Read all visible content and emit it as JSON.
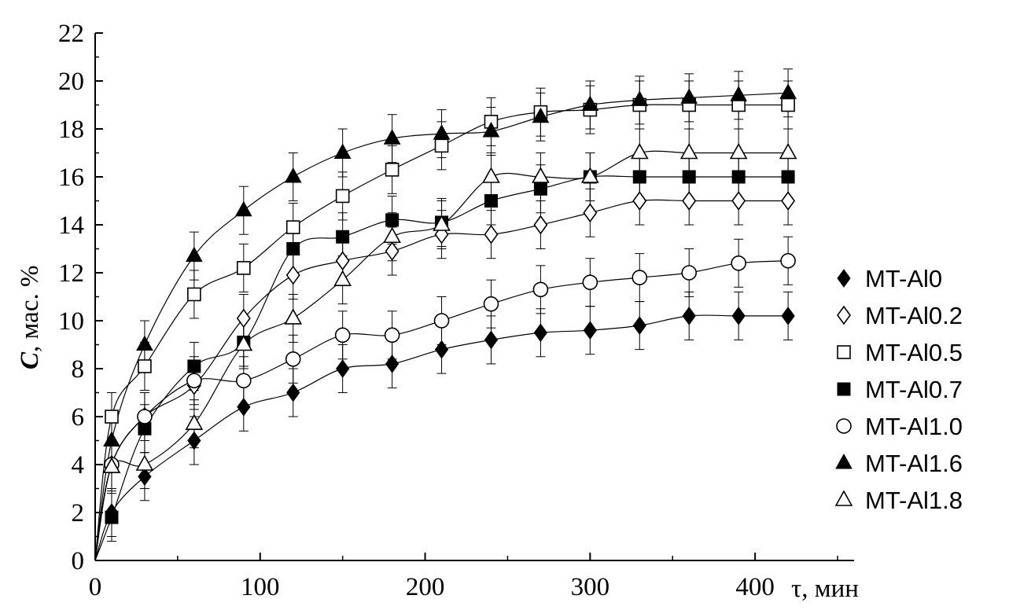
{
  "chart_data": {
    "type": "line",
    "title": "",
    "xlabel": "τ, мин",
    "ylabel_italic": "C",
    "ylabel": ", мас. %",
    "xlim": [
      0,
      460
    ],
    "ylim": [
      0,
      22
    ],
    "x_ticks": [
      "0",
      "100",
      "200",
      "300",
      "400"
    ],
    "y_ticks": [
      "0",
      "2",
      "4",
      "6",
      "8",
      "10",
      "12",
      "14",
      "16",
      "18",
      "20",
      "22"
    ],
    "legend_position": "right",
    "x": [
      0,
      10,
      30,
      60,
      90,
      120,
      150,
      180,
      210,
      240,
      270,
      300,
      330,
      360,
      390,
      420
    ],
    "series": [
      {
        "name": "MT-Al0",
        "marker": "diamond",
        "filled": true,
        "values": [
          0,
          2.0,
          3.5,
          5.0,
          6.4,
          7.0,
          8.0,
          8.2,
          8.8,
          9.2,
          9.5,
          9.6,
          9.8,
          10.2,
          10.2,
          10.2
        ]
      },
      {
        "name": "MT-Al0.2",
        "marker": "diamond",
        "filled": false,
        "values": [
          0,
          4.0,
          6.0,
          7.3,
          10.1,
          11.9,
          12.5,
          12.9,
          13.6,
          13.6,
          14.0,
          14.5,
          15.0,
          15.0,
          15.0,
          15.0
        ]
      },
      {
        "name": "MT-Al0.5",
        "marker": "square",
        "filled": false,
        "values": [
          0,
          6.0,
          8.1,
          11.1,
          12.2,
          13.9,
          15.2,
          16.3,
          17.3,
          18.3,
          18.7,
          18.8,
          19.0,
          19.0,
          19.0,
          19.0
        ]
      },
      {
        "name": "MT-Al0.7",
        "marker": "square",
        "filled": true,
        "values": [
          0,
          1.8,
          5.5,
          8.1,
          9.1,
          13.0,
          13.5,
          14.2,
          14.1,
          15.0,
          15.5,
          16.0,
          16.0,
          16.0,
          16.0,
          16.0
        ]
      },
      {
        "name": "MT-Al1.0",
        "marker": "circle",
        "filled": false,
        "values": [
          0,
          4.0,
          6.0,
          7.5,
          7.5,
          8.4,
          9.4,
          9.4,
          10.0,
          10.7,
          11.3,
          11.6,
          11.8,
          12.0,
          12.4,
          12.5
        ]
      },
      {
        "name": "MT-Al1.6",
        "marker": "triangle",
        "filled": true,
        "values": [
          0,
          5.0,
          9.0,
          12.7,
          14.6,
          16.0,
          17.0,
          17.6,
          17.8,
          17.9,
          18.5,
          19.0,
          19.2,
          19.3,
          19.4,
          19.5
        ]
      },
      {
        "name": "MT-Al1.8",
        "marker": "triangle",
        "filled": false,
        "values": [
          0,
          3.9,
          4.0,
          5.7,
          9.0,
          10.1,
          11.7,
          13.5,
          14.0,
          16.0,
          16.0,
          16.0,
          17.0,
          17.0,
          17.0,
          17.0
        ]
      }
    ],
    "error_bar": 1.0
  }
}
